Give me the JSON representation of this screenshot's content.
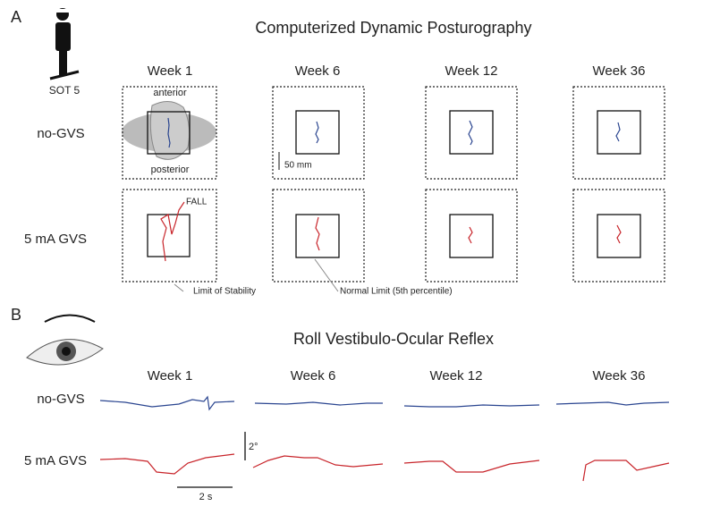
{
  "panel_a": {
    "label": "A",
    "title": "Computerized Dynamic Posturography",
    "icon_label": "SOT 5",
    "columns": [
      "Week 1",
      "Week 6",
      "Week 12",
      "Week 36"
    ],
    "rows": [
      "no-GVS",
      "5 mA GVS"
    ],
    "annotations": {
      "anterior": "anterior",
      "posterior": "posterior",
      "scale": "50 mm",
      "fall": "FALL",
      "limit_of_stability": "Limit of Stability",
      "normal_limit": "Normal Limit (5th percentile)"
    }
  },
  "panel_b": {
    "label": "B",
    "title": "Roll Vestibulo-Ocular  Reflex",
    "columns": [
      "Week 1",
      "Week 6",
      "Week 12",
      "Week 36"
    ],
    "rows": [
      "no-GVS",
      "5 mA GVS"
    ],
    "scale_y": "2°",
    "scale_x": "2 s"
  }
}
